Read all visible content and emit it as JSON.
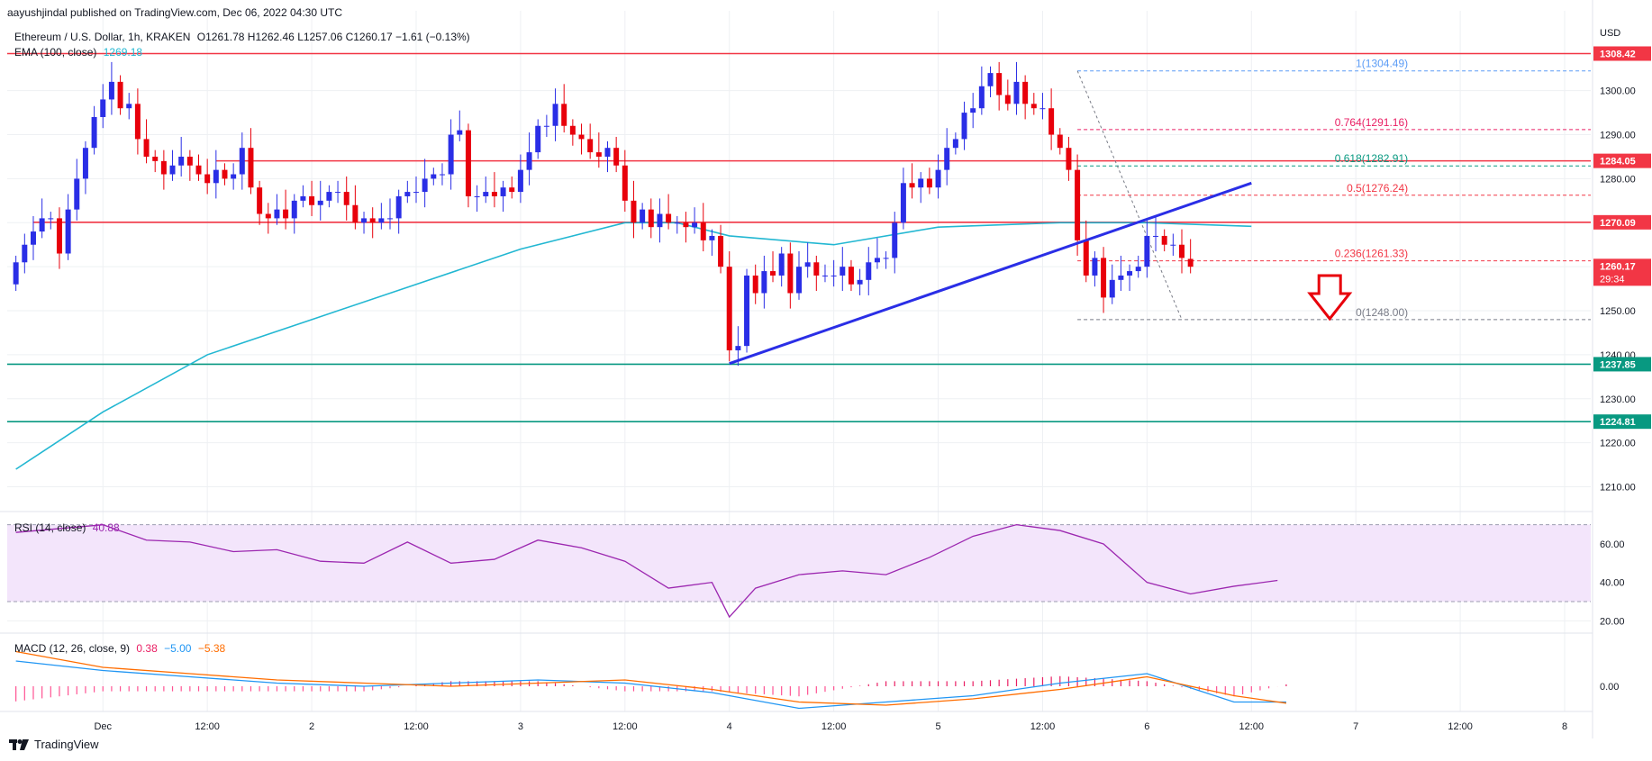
{
  "header": {
    "published": "aayushjindal published on TradingView.com, Dec 06, 2022 04:30 UTC",
    "symbol": "Ethereum / U.S. Dollar, 1h, KRAKEN",
    "ohlc": "O1261.78  H1262.46  L1257.06  C1260.17  −1.61 (−0.13%)",
    "ema_label": "EMA (100, close)",
    "ema_value": "1269.18"
  },
  "footer": {
    "brand": "TradingView"
  },
  "chart_data": [
    {
      "type": "candlestick",
      "title": "Ethereum / U.S. Dollar, 1h, KRAKEN",
      "currency": "USD",
      "ylim": [
        1205,
        1312
      ],
      "y_ticks": [
        1210,
        1220,
        1230,
        1240,
        1250,
        1260,
        1270,
        1280,
        1290,
        1300
      ],
      "y_tick_labels": [
        "1210.00",
        "1220.00",
        "1230.00",
        "1240.00",
        "1250.00",
        "1260.00",
        "1270.00",
        "1280.00",
        "1290.00",
        "1300.00"
      ],
      "x_tick_labels": [
        "Dec",
        "12:00",
        "2",
        "12:00",
        "3",
        "12:00",
        "4",
        "12:00",
        "5",
        "12:00",
        "6",
        "12:00",
        "7",
        "12:00",
        "8"
      ],
      "x_tick_hours": [
        0,
        12,
        24,
        36,
        48,
        60,
        72,
        84,
        96,
        108,
        120,
        132,
        144,
        156,
        168
      ],
      "x_range_hours": [
        -11,
        171
      ],
      "candles": {
        "start_hour": -10,
        "step_hours": 1,
        "close": [
          1261,
          1265,
          1268,
          1271,
          1271,
          1263,
          1273,
          1280,
          1287,
          1294,
          1298,
          1302,
          1296,
          1297,
          1289,
          1285,
          1284,
          1281,
          1283,
          1285,
          1283,
          1281,
          1279,
          1282,
          1280,
          1281,
          1287,
          1278,
          1272,
          1271,
          1273,
          1271,
          1275,
          1276,
          1274,
          1275,
          1277,
          1277,
          1274,
          1270,
          1271,
          1270,
          1271,
          1271,
          1276,
          1277,
          1277,
          1280,
          1281,
          1281,
          1290,
          1291,
          1276,
          1276,
          1277,
          1276,
          1278,
          1277,
          1282,
          1286,
          1292,
          1292,
          1297,
          1292,
          1290,
          1289,
          1286,
          1285,
          1287,
          1283,
          1275,
          1270,
          1273,
          1269,
          1272,
          1270,
          1270,
          1269,
          1270,
          1266,
          1267,
          1260,
          1241,
          1242,
          1258,
          1254,
          1259,
          1258,
          1263,
          1254,
          1260,
          1261,
          1258,
          1258,
          1258,
          1260,
          1256,
          1257,
          1261,
          1262,
          1262,
          1270,
          1279,
          1278,
          1280,
          1278,
          1282,
          1287,
          1289,
          1295,
          1296,
          1301,
          1304,
          1299,
          1297,
          1302,
          1297,
          1296,
          1296,
          1290,
          1287,
          1282,
          1266,
          1258,
          1262,
          1253,
          1257,
          1258,
          1259,
          1260,
          1267,
          1267,
          1265,
          1265,
          1262,
          1260
        ],
        "open": [
          1256,
          1261,
          1265,
          1268,
          1271,
          1271,
          1263,
          1273,
          1280,
          1287,
          1294,
          1298,
          1302,
          1296,
          1297,
          1289,
          1285,
          1284,
          1281,
          1283,
          1285,
          1283,
          1281,
          1279,
          1282,
          1280,
          1281,
          1287,
          1278,
          1272,
          1271,
          1273,
          1271,
          1275,
          1276,
          1274,
          1275,
          1277,
          1277,
          1274,
          1270,
          1271,
          1270,
          1271,
          1271,
          1276,
          1277,
          1277,
          1280,
          1281,
          1281,
          1290,
          1291,
          1276,
          1276,
          1277,
          1276,
          1278,
          1277,
          1282,
          1286,
          1292,
          1292,
          1297,
          1292,
          1290,
          1289,
          1286,
          1285,
          1287,
          1283,
          1275,
          1270,
          1273,
          1269,
          1272,
          1270,
          1270,
          1269,
          1270,
          1266,
          1267,
          1260,
          1241,
          1242,
          1258,
          1254,
          1259,
          1258,
          1263,
          1254,
          1260,
          1261,
          1258,
          1258,
          1258,
          1260,
          1256,
          1257,
          1261,
          1262,
          1262,
          1270,
          1279,
          1278,
          1280,
          1278,
          1282,
          1287,
          1289,
          1295,
          1296,
          1301,
          1304,
          1299,
          1297,
          1302,
          1297,
          1296,
          1296,
          1290,
          1287,
          1282,
          1266,
          1258,
          1262,
          1253,
          1257,
          1258,
          1259,
          1260,
          1267,
          1267,
          1265,
          1265,
          1261.78
        ]
      },
      "ema_100": {
        "name": "EMA (100, close)",
        "color": "#22b7d2",
        "hours": [
          -10,
          0,
          12,
          24,
          36,
          48,
          60,
          66,
          72,
          84,
          96,
          110,
          120,
          132
        ],
        "values": [
          1214,
          1227,
          1240,
          1248,
          1256,
          1264,
          1270,
          1270,
          1267,
          1265,
          1269,
          1270,
          1270,
          1269.18
        ]
      },
      "horizontal_levels": [
        {
          "value": 1308.42,
          "label": "1308.42",
          "color": "#f23645",
          "from_hour": -11
        },
        {
          "value": 1284.05,
          "label": "1284.05",
          "color": "#f23645",
          "from_hour": 13
        },
        {
          "value": 1270.09,
          "label": "1270.09",
          "color": "#f23645",
          "from_hour": -8
        },
        {
          "value": 1237.85,
          "label": "1237.85",
          "color": "#089981",
          "from_hour": -11
        },
        {
          "value": 1224.81,
          "label": "1224.81",
          "color": "#089981",
          "from_hour": -11
        }
      ],
      "fibonacci": [
        {
          "ratio": "1",
          "value": 1304.49,
          "label": "1(1304.49)",
          "color": "#5b9cf6"
        },
        {
          "ratio": "0.764",
          "value": 1291.16,
          "label": "0.764(1291.16)",
          "color": "#e91e63"
        },
        {
          "ratio": "0.618",
          "value": 1282.91,
          "label": "0.618(1282.91)",
          "color": "#089981"
        },
        {
          "ratio": "0.5",
          "value": 1276.24,
          "label": "0.5(1276.24)",
          "color": "#f23645"
        },
        {
          "ratio": "0.236",
          "value": 1261.33,
          "label": "0.236(1261.33)",
          "color": "#f23645"
        },
        {
          "ratio": "0",
          "value": 1248.0,
          "label": "0(1248.00)",
          "color": "#787b86"
        }
      ],
      "trendline": {
        "color": "#2a2ee6",
        "from": [
          72,
          1238
        ],
        "to": [
          132,
          1279
        ]
      },
      "last_price": {
        "value": 1260.17,
        "label": "1260.17",
        "countdown": "29:34",
        "color": "#f23645"
      },
      "annotation": "down arrow",
      "currency_label": "USD"
    },
    {
      "type": "line",
      "title": "RSI (14, close)",
      "series": [
        {
          "name": "RSI (14, close)",
          "color": "#9c27b0",
          "hours": [
            -10,
            -5,
            0,
            5,
            10,
            15,
            20,
            25,
            30,
            35,
            40,
            45,
            50,
            55,
            60,
            65,
            70,
            72,
            75,
            80,
            85,
            90,
            95,
            100,
            105,
            110,
            115,
            120,
            125,
            130,
            135
          ],
          "values": [
            66,
            68,
            70,
            62,
            61,
            56,
            57,
            51,
            50,
            61,
            50,
            52,
            62,
            58,
            51,
            37,
            40,
            22,
            37,
            44,
            46,
            44,
            53,
            64,
            70,
            67,
            60,
            40,
            34,
            38,
            41
          ]
        }
      ],
      "current": "40.88",
      "ylim": [
        15,
        75
      ],
      "y_ticks": [
        20,
        40,
        60
      ],
      "y_tick_labels": [
        "20.00",
        "40.00",
        "60.00"
      ],
      "band": [
        30,
        70
      ]
    },
    {
      "type": "bar",
      "title": "MACD (12, 26, close, 9)",
      "legend_values": {
        "hist": "0.38",
        "macd": "−5.00",
        "signal": "−5.38"
      },
      "y_ticks": [
        0
      ],
      "y_tick_labels": [
        "0.00"
      ],
      "ylim": [
        -8,
        16
      ],
      "series": [
        {
          "name": "MACD",
          "color": "#2196f3",
          "hours": [
            -10,
            0,
            10,
            20,
            30,
            40,
            50,
            60,
            70,
            80,
            90,
            100,
            110,
            120,
            130,
            136
          ],
          "values": [
            8,
            5,
            3,
            1,
            0,
            1,
            2,
            1,
            -2,
            -7,
            -5,
            -3,
            1,
            4,
            -5,
            -5
          ]
        },
        {
          "name": "Signal",
          "color": "#ff6d00",
          "hours": [
            -10,
            0,
            10,
            20,
            30,
            40,
            50,
            60,
            70,
            80,
            90,
            100,
            110,
            120,
            130,
            136
          ],
          "values": [
            11,
            6,
            4,
            2,
            1,
            0,
            1,
            2,
            -1,
            -5,
            -6,
            -4,
            -1,
            3,
            -3,
            -5.38
          ]
        }
      ]
    }
  ]
}
